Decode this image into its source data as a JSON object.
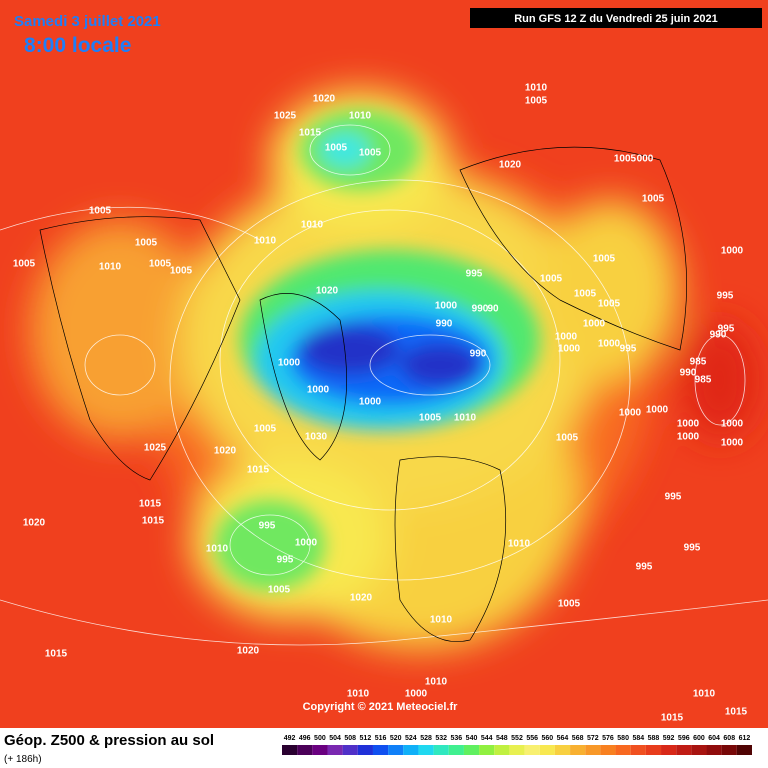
{
  "header": {
    "date": "Samedi 3 juillet 2021",
    "time": "8:00 locale",
    "run": "Run GFS 12 Z du Vendredi 25 juin 2021"
  },
  "map": {
    "copyright": "Copyright © 2021 Meteociel.fr",
    "pressure_labels": [
      "1010",
      "1005",
      "1020",
      "1025",
      "1010",
      "1015",
      "1005",
      "1005",
      "1020",
      "1005",
      "000",
      "1005",
      "1005",
      "1005",
      "1010",
      "1010",
      "1005",
      "1010",
      "1005",
      "1005",
      "995",
      "1005",
      "1005",
      "1005",
      "1005",
      "1020",
      "1000",
      "990",
      "90",
      "990",
      "995",
      "1000",
      "1000",
      "1000",
      "1000",
      "1000",
      "995",
      "995",
      "990",
      "985",
      "990",
      "985",
      "1000",
      "990",
      "1000",
      "1000",
      "1005",
      "1010",
      "1000",
      "1000",
      "1000",
      "1000",
      "1000",
      "1000",
      "1005",
      "1005",
      "1030",
      "1025",
      "1020",
      "1015",
      "995",
      "1015",
      "1015",
      "1020",
      "995",
      "1000",
      "1010",
      "995",
      "1010",
      "995",
      "995",
      "1005",
      "1020",
      "1005",
      "1010",
      "1015",
      "1020",
      "1010",
      "1010",
      "1000",
      "1010",
      "1015",
      "1015"
    ]
  },
  "footer": {
    "title": "Géop. Z500 & pression au sol",
    "lead": "(+ 186h)",
    "colorbar": {
      "values": [
        492,
        496,
        500,
        504,
        508,
        512,
        516,
        520,
        524,
        528,
        532,
        536,
        540,
        544,
        548,
        552,
        556,
        560,
        564,
        568,
        572,
        576,
        580,
        584,
        588,
        592,
        596,
        600,
        604,
        608,
        612
      ],
      "colors": [
        "#2a0030",
        "#4b0058",
        "#6a0080",
        "#7a28b0",
        "#5030c8",
        "#2030d8",
        "#1050f0",
        "#1080f8",
        "#10b0f8",
        "#20d8f0",
        "#30e8c0",
        "#40f090",
        "#60f060",
        "#90f040",
        "#c0f040",
        "#e8f050",
        "#f8f070",
        "#f8e850",
        "#f8d040",
        "#f8b030",
        "#f89828",
        "#f88020",
        "#f86820",
        "#f05020",
        "#e83c1c",
        "#d82818",
        "#c01c14",
        "#a81410",
        "#900c0c",
        "#780808",
        "#500404"
      ]
    }
  }
}
